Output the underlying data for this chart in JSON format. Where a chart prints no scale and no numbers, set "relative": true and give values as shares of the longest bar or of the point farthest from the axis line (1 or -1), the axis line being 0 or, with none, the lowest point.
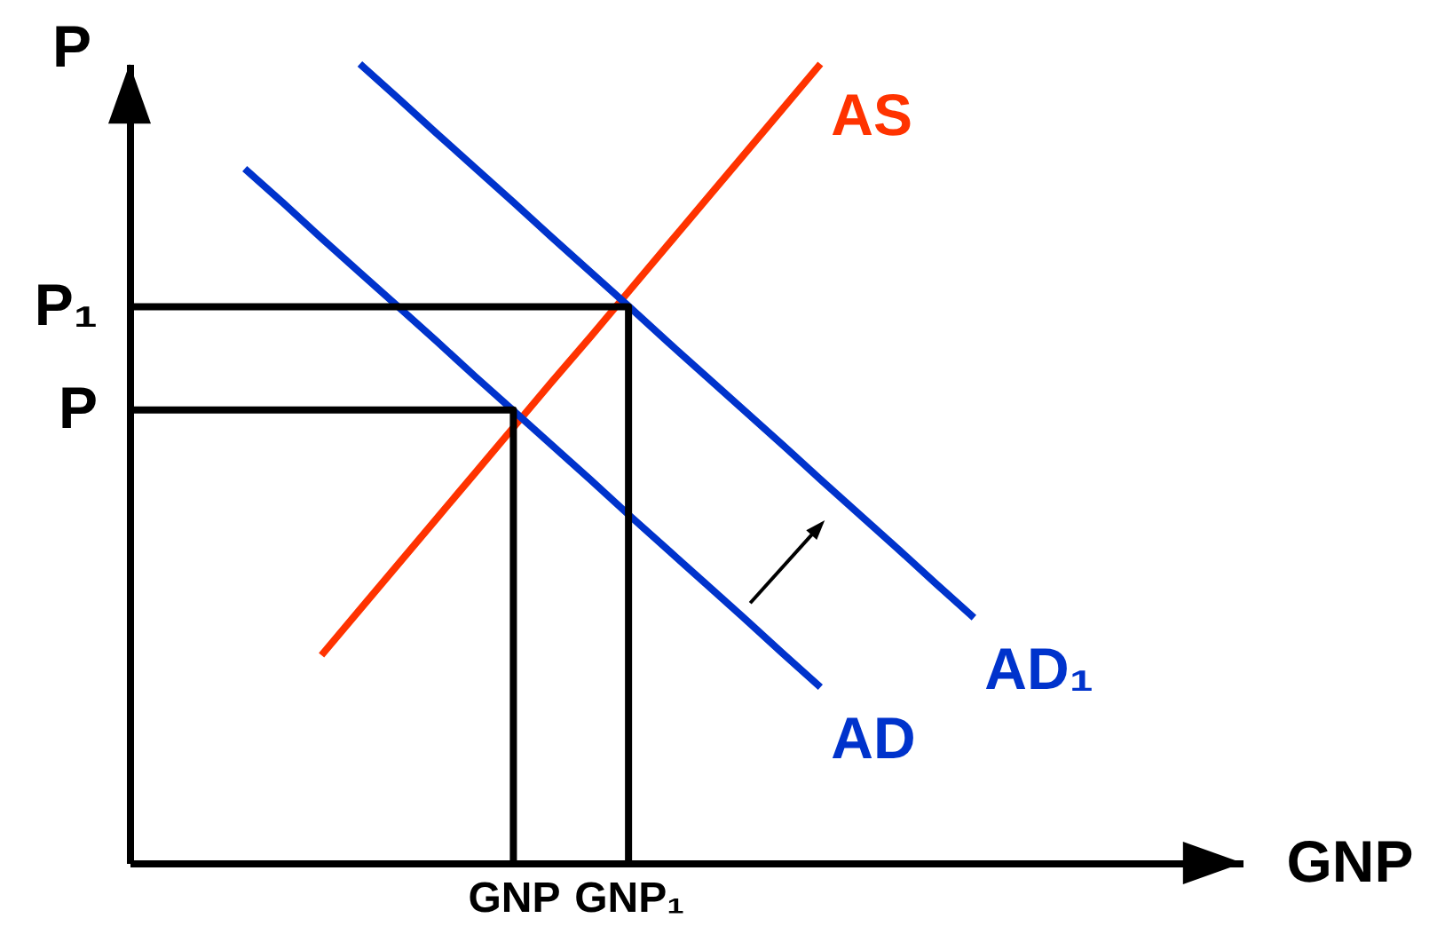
{
  "chart_data": {
    "type": "line",
    "relative": true,
    "xlabel": "GNP",
    "ylabel": "P",
    "categories": [
      null,
      null,
      null,
      null,
      null,
      null,
      null,
      null,
      null,
      null,
      "GNP",
      null,
      null,
      "GNP₁",
      null,
      null,
      null,
      null,
      null,
      null,
      null,
      null,
      null,
      null,
      null,
      null,
      null,
      null,
      null,
      null
    ],
    "series": [
      {
        "name": "AS",
        "color": "#ff3300",
        "values": [
          null,
          null,
          null,
          null,
          null,
          0.26,
          0.317,
          0.374,
          0.431,
          0.488,
          0.545,
          0.602,
          0.658,
          0.715,
          0.772,
          0.829,
          0.886,
          0.943,
          1.0,
          null,
          null,
          null,
          null,
          null,
          null,
          null,
          null,
          null,
          null,
          null
        ]
      },
      {
        "name": "AD",
        "color": "#0033cc",
        "values": [
          null,
          null,
          null,
          0.869,
          0.826,
          0.782,
          0.739,
          0.696,
          0.653,
          0.609,
          0.566,
          0.523,
          0.48,
          0.436,
          0.393,
          0.35,
          0.307,
          0.263,
          0.22,
          null,
          null,
          null,
          null,
          null,
          null,
          null,
          null,
          null,
          null,
          null
        ]
      },
      {
        "name": "AD₁",
        "color": "#0033cc",
        "values": [
          null,
          null,
          null,
          null,
          null,
          null,
          1.0,
          0.957,
          0.913,
          0.87,
          0.827,
          0.783,
          0.74,
          0.697,
          0.653,
          0.61,
          0.567,
          0.524,
          0.48,
          0.437,
          0.394,
          0.35,
          0.307,
          null,
          null,
          null,
          null,
          null,
          null,
          null
        ]
      },
      {
        "type": "step",
        "name": "P",
        "color": "#000000",
        "values": [
          0.567,
          0.567,
          0.567,
          0.567,
          0.567,
          0.567,
          0.567,
          0.567,
          0.567,
          0.567,
          0,
          null,
          null,
          null,
          null,
          null,
          null,
          null,
          null,
          null,
          null,
          null,
          null,
          null,
          null,
          null,
          null,
          null,
          null,
          null
        ]
      },
      {
        "type": "step",
        "name": "P₁",
        "color": "#000000",
        "values": [
          0.696,
          0.696,
          0.696,
          0.696,
          0.696,
          0.696,
          0.696,
          0.696,
          0.696,
          0.696,
          0.696,
          0.696,
          0.696,
          0,
          null,
          null,
          null,
          null,
          null,
          null,
          null,
          null,
          null,
          null,
          null,
          null,
          null,
          null,
          null,
          null
        ]
      }
    ]
  }
}
